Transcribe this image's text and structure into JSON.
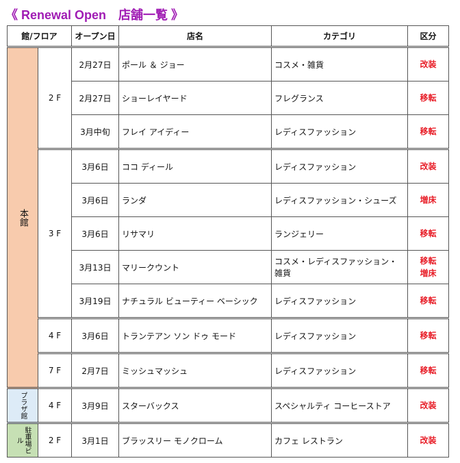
{
  "title": "《 Renewal Open　店舗一覧 》",
  "headers": [
    "館/フロア",
    "オープン日",
    "店名",
    "カテゴリ",
    "区分"
  ],
  "buildings": [
    {
      "name": "本館",
      "color": "#f8cbad",
      "floors": [
        {
          "floor": "2 F",
          "shops": [
            {
              "date": "2月27日",
              "name": "ポール ＆ ジョー",
              "category": "コスメ・雑貨",
              "kinds": [
                "改装"
              ]
            },
            {
              "date": "2月27日",
              "name": "ショーレイヤード",
              "category": "フレグランス",
              "kinds": [
                "移転"
              ]
            },
            {
              "date": "3月中旬",
              "name": "フレイ アイディー",
              "category": "レディスファッション",
              "kinds": [
                "移転"
              ]
            }
          ]
        },
        {
          "floor": "3 F",
          "shops": [
            {
              "date": "3月6日",
              "name": "ココ ディール",
              "category": "レディスファッション",
              "kinds": [
                "改装"
              ]
            },
            {
              "date": "3月6日",
              "name": "ランダ",
              "category": "レディスファッション・シューズ",
              "kinds": [
                "増床"
              ]
            },
            {
              "date": "3月6日",
              "name": "リサマリ",
              "category": "ランジェリー",
              "kinds": [
                "移転"
              ]
            },
            {
              "date": "3月13日",
              "name": "マリークウント",
              "category": "コスメ・レディスファッション・雑貨",
              "kinds": [
                "移転",
                "増床"
              ]
            },
            {
              "date": "3月19日",
              "name": "ナチュラル ビューティー ベーシック",
              "category": "レディスファッション",
              "kinds": [
                "移転"
              ]
            }
          ]
        },
        {
          "floor": "4 F",
          "shops": [
            {
              "date": "3月6日",
              "name": "トランテアン ソン ドゥ モード",
              "category": "レディスファッション",
              "kinds": [
                "移転"
              ]
            }
          ]
        },
        {
          "floor": "7 F",
          "shops": [
            {
              "date": "2月7日",
              "name": "ミッシュマッシュ",
              "category": "レディスファッション",
              "kinds": [
                "移転"
              ]
            }
          ]
        }
      ]
    },
    {
      "name": "プラザ館",
      "color": "#ddebf7",
      "floors": [
        {
          "floor": "4 F",
          "shops": [
            {
              "date": "3月9日",
              "name": "スターバックス",
              "category": "スペシャルティ コーヒーストア",
              "kinds": [
                "改装"
              ]
            }
          ]
        }
      ]
    },
    {
      "name": "駐車場ビル",
      "color": "#c6e0b4",
      "floors": [
        {
          "floor": "2 F",
          "shops": [
            {
              "date": "3月1日",
              "name": "ブラッスリー モノクローム",
              "category": "カフェ レストラン",
              "kinds": [
                "改装"
              ]
            }
          ]
        }
      ]
    }
  ]
}
